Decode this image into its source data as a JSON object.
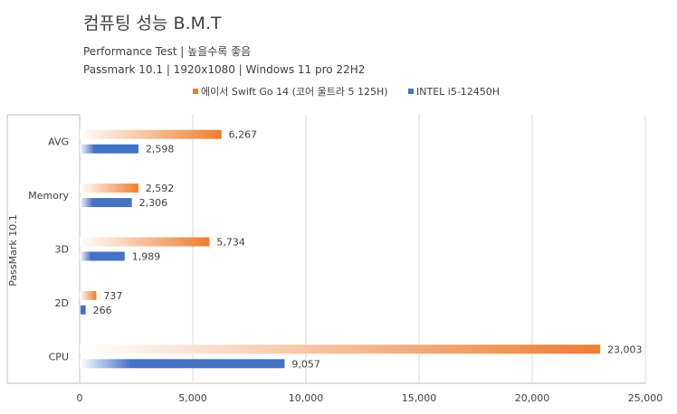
{
  "title": "컴퓨팅 성능 B.M.T",
  "subtitles": [
    "Performance Test | 높을수록 좋음",
    "Passmark 10.1 | 1920x1080 | Windows 11 pro 22H2"
  ],
  "colors": {
    "series_0": "#ED7D31",
    "series_1": "#4472C4",
    "gridline": "#D9D9D9",
    "axis_line": "#BFBFBF"
  },
  "chart_data": {
    "type": "bar",
    "orientation": "horizontal",
    "categories": [
      "AVG",
      "Memory",
      "3D",
      "2D",
      "CPU"
    ],
    "series": [
      {
        "name": "에이서 Swift Go 14 (코어 울트라 5 125H)",
        "values": [
          6267,
          2592,
          5734,
          737,
          23003
        ],
        "labels": [
          "6,267",
          "2,592",
          "5,734",
          "737",
          "23,003"
        ]
      },
      {
        "name": "INTEL i5-12450H",
        "values": [
          2598,
          2306,
          1989,
          266,
          9057
        ],
        "labels": [
          "2,598",
          "2,306",
          "1,989",
          "266",
          "9,057"
        ]
      }
    ],
    "xlim": [
      0,
      25000
    ],
    "xticks": [
      0,
      5000,
      10000,
      15000,
      20000,
      25000
    ],
    "xtick_labels": [
      "0",
      "5,000",
      "10,000",
      "15,000",
      "20,000",
      "25,000"
    ],
    "ylabel": "PassMark 10.1",
    "grid": true,
    "legend_position": "top"
  }
}
